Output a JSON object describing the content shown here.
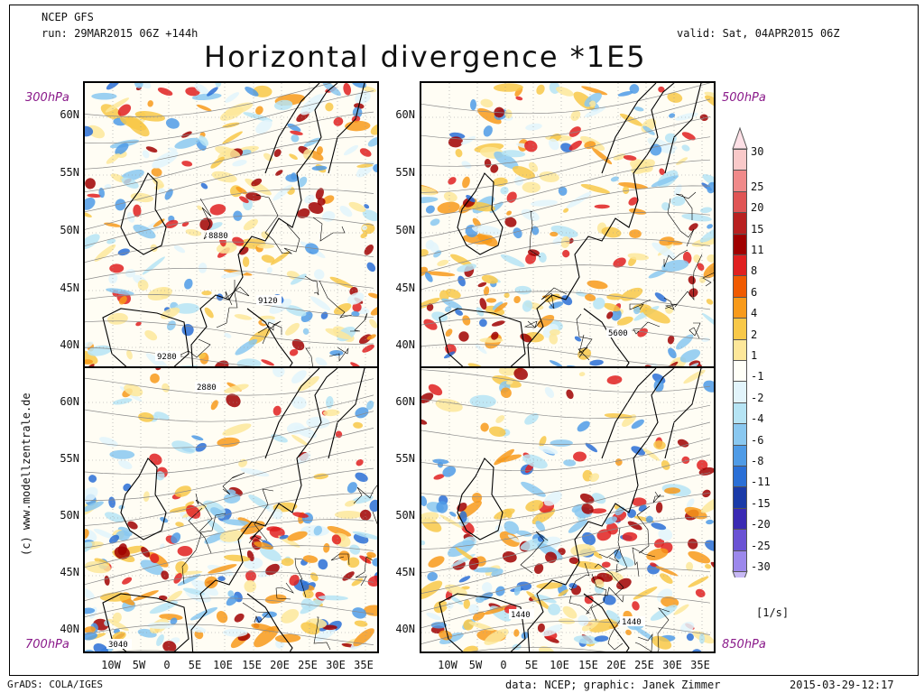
{
  "header": {
    "model": "NCEP GFS",
    "run": "run: 29MAR2015 06Z +144h",
    "valid": "valid: Sat, 04APR2015 06Z",
    "title": "Horizontal divergence *1E5"
  },
  "levels": {
    "top_left": "300hPa",
    "top_right": "500hPa",
    "bottom_left": "700hPa",
    "bottom_right": "850hPa"
  },
  "lat_labels_top": [
    "60N",
    "55N",
    "50N",
    "45N",
    "40N"
  ],
  "lat_labels_bottom": [
    "60N",
    "55N",
    "50N",
    "45N",
    "40N"
  ],
  "lon_labels": [
    "10W",
    "5W",
    "0",
    "5E",
    "10E",
    "15E",
    "20E",
    "25E",
    "30E",
    "35E"
  ],
  "contour_labels": {
    "p300": [
      "8880",
      "9120",
      "9280"
    ],
    "p500": [
      "5600"
    ],
    "p700": [
      "2880",
      "3040"
    ],
    "p850": [
      "1440",
      "1440"
    ]
  },
  "colorbar": {
    "labels": [
      "30",
      "25",
      "20",
      "15",
      "11",
      "8",
      "6",
      "4",
      "2",
      "1",
      "-1",
      "-2",
      "-4",
      "-6",
      "-8",
      "-11",
      "-15",
      "-20",
      "-25",
      "-30"
    ],
    "colors": [
      "#f9c9c9",
      "#f08a8a",
      "#e05555",
      "#b82020",
      "#a00000",
      "#e02020",
      "#f05a00",
      "#f89a1a",
      "#f8c848",
      "#fde79a",
      "#fffff8",
      "#e2f4fb",
      "#b6e4f4",
      "#8ac8f0",
      "#4f9be6",
      "#2a6fd6",
      "#1a3aa8",
      "#3a2ab4",
      "#6a52d4",
      "#9c88ec"
    ],
    "top_arrow_color": "#fde0e6",
    "bottom_arrow_color": "#c7b8f4",
    "units": "[1/s]"
  },
  "footer": {
    "left": "GrADS: COLA/IGES",
    "credits": "data: NCEP; graphic: Janek Zimmer",
    "timestamp": "2015-03-29-12:17",
    "copyright": "(c) www.modellzentrale.de"
  }
}
